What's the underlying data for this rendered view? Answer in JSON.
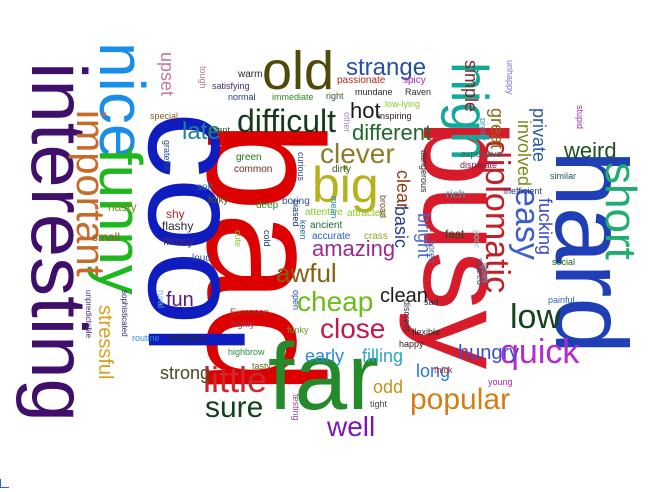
{
  "words": [
    {
      "text": "bad",
      "color": "#dd0000",
      "rot": 90
    },
    {
      "text": "cool",
      "color": "#0f1dc0",
      "rot": 90
    },
    {
      "text": "interesting",
      "color": "#3f0f6b",
      "rot": 90
    },
    {
      "text": "busy",
      "color": "#d81b2a",
      "rot": 90
    },
    {
      "text": "hard",
      "color": "#1e3fb5",
      "rot": 90
    },
    {
      "text": "far",
      "color": "#248a2c",
      "rot": 0
    },
    {
      "text": "nice",
      "color": "#1a8de8",
      "rot": 90
    },
    {
      "text": "funny",
      "color": "#1db81d",
      "rot": 90
    },
    {
      "text": "old",
      "color": "#4f4a0a",
      "rot": 0
    },
    {
      "text": "big",
      "color": "#b7b11d",
      "rot": 0
    },
    {
      "text": "high",
      "color": "#13a897",
      "rot": 90
    },
    {
      "text": "important",
      "color": "#c86a2a",
      "rot": 90
    },
    {
      "text": "short",
      "color": "#1fae6f",
      "rot": 90
    },
    {
      "text": "diplomatic",
      "color": "#c0202a",
      "rot": 90
    },
    {
      "text": "easy",
      "color": "#3e5ecc",
      "rot": 90
    },
    {
      "text": "difficult",
      "color": "#143a1a",
      "rot": 0
    },
    {
      "text": "clever",
      "color": "#8d7d2a",
      "rot": 0
    },
    {
      "text": "little",
      "color": "#d02630",
      "rot": 0
    },
    {
      "text": "quick",
      "color": "#b52ad2",
      "rot": 0
    },
    {
      "text": "popular",
      "color": "#d47c16",
      "rot": 0
    },
    {
      "text": "sure",
      "color": "#12421a",
      "rot": 0
    },
    {
      "text": "well",
      "color": "#7d17b3",
      "rot": 0
    },
    {
      "text": "low",
      "color": "#14441a",
      "rot": 0
    },
    {
      "text": "close",
      "color": "#c01a4a",
      "rot": 0
    },
    {
      "text": "cheap",
      "color": "#6bbd1a",
      "rot": 0
    },
    {
      "text": "awful",
      "color": "#866010",
      "rot": 0
    },
    {
      "text": "late",
      "color": "#1c8496",
      "rot": 0
    },
    {
      "text": "strange",
      "color": "#2550a8",
      "rot": 0
    },
    {
      "text": "different",
      "color": "#1f6a2c",
      "rot": 0
    },
    {
      "text": "hot",
      "color": "#1a1a1a",
      "rot": 0
    },
    {
      "text": "weird",
      "color": "#1f5020",
      "rot": 0
    },
    {
      "text": "clean",
      "color": "#1a1a1a",
      "rot": 0
    },
    {
      "text": "hungry",
      "color": "#3e50c8",
      "rot": 0
    },
    {
      "text": "amazing",
      "color": "#9c2a8f",
      "rot": 0
    },
    {
      "text": "strong",
      "color": "#4a4a1a",
      "rot": 0
    },
    {
      "text": "early",
      "color": "#2a8ad8",
      "rot": 0
    },
    {
      "text": "filling",
      "color": "#2aa8c8",
      "rot": 0
    },
    {
      "text": "long",
      "color": "#2a7ad0",
      "rot": 0
    },
    {
      "text": "odd",
      "color": "#c8901a",
      "rot": 0
    },
    {
      "text": "stressful",
      "color": "#d8a020",
      "rot": 90
    },
    {
      "text": "simple",
      "color": "#7a2a2a",
      "rot": 90
    },
    {
      "text": "great",
      "color": "#8a6a1a",
      "rot": 90
    },
    {
      "text": "involved",
      "color": "#7a8a1a",
      "rot": 90
    },
    {
      "text": "private",
      "color": "#2a5aa0",
      "rot": 90
    },
    {
      "text": "fucking",
      "color": "#3a4ac0",
      "rot": 90
    },
    {
      "text": "clear",
      "color": "#8a3a1a",
      "rot": 90
    },
    {
      "text": "basic",
      "color": "#2a3a8a",
      "rot": 90
    },
    {
      "text": "bright",
      "color": "#4a6ad0",
      "rot": 90
    },
    {
      "text": "fun",
      "color": "#5a1a7a",
      "rot": 0
    },
    {
      "text": "upset",
      "color": "#c07a9a",
      "rot": 90
    },
    {
      "text": "nasty",
      "color": "#7a8a1a",
      "rot": 0
    },
    {
      "text": "small",
      "color": "#8a5a1a",
      "rot": 0
    },
    {
      "text": "shy",
      "color": "#b02a2a",
      "rot": 0
    },
    {
      "text": "flashy",
      "color": "#2a2a2a",
      "rot": 0
    },
    {
      "text": "flimsy",
      "color": "#4a2a6a",
      "rot": 0
    },
    {
      "text": "loud",
      "color": "#2a4a9a",
      "rot": 0
    },
    {
      "text": "green",
      "color": "#1a7a1a",
      "rot": 0
    },
    {
      "text": "common",
      "color": "#6a2a1a",
      "rot": 0
    },
    {
      "text": "soft",
      "color": "#2a6ab0",
      "rot": 0
    },
    {
      "text": "folky",
      "color": "#5a5a1a",
      "rot": 0
    },
    {
      "text": "deep",
      "color": "#2a8a2a",
      "rot": 0
    },
    {
      "text": "boring",
      "color": "#2a4ab0",
      "rot": 0
    },
    {
      "text": "dirty",
      "color": "#2a5a2a",
      "rot": 0
    },
    {
      "text": "attentive",
      "color": "#8ac82a",
      "rot": 0
    },
    {
      "text": "ancient",
      "color": "#1a6a2a",
      "rot": 0
    },
    {
      "text": "attracted",
      "color": "#8ac82a",
      "rot": 0
    },
    {
      "text": "accurate",
      "color": "#2a5ac8",
      "rot": 0
    },
    {
      "text": "crass",
      "color": "#8aa82a",
      "rot": 0
    },
    {
      "text": "fast",
      "color": "#1a4a2a",
      "rot": 0
    },
    {
      "text": "rich",
      "color": "#2aa8a8",
      "rot": 0
    },
    {
      "text": "expensive",
      "color": "#2a6a6a",
      "rot": 0
    },
    {
      "text": "disparate",
      "color": "#7a1a4a",
      "rot": 0
    },
    {
      "text": "inefficient",
      "color": "#2a3a8a",
      "rot": 0
    },
    {
      "text": "similar",
      "color": "#1a5a5a",
      "rot": 0
    },
    {
      "text": "social",
      "color": "#1a5a1a",
      "rot": 0
    },
    {
      "text": "painful",
      "color": "#2a6ab0",
      "rot": 0
    },
    {
      "text": "young",
      "color": "#b02ab0",
      "rot": 0
    },
    {
      "text": "scared",
      "color": "#2a5a8a",
      "rot": 90
    },
    {
      "text": "quiet",
      "color": "#4ab0d0",
      "rot": 90
    },
    {
      "text": "discreet",
      "color": "#2a3a4a",
      "rot": 90
    },
    {
      "text": "sad",
      "color": "#2a2a4a",
      "rot": 0
    },
    {
      "text": "happy",
      "color": "#2a1a1a",
      "rot": 0
    },
    {
      "text": "flexible",
      "color": "#2a2a2a",
      "rot": 0
    },
    {
      "text": "thick",
      "color": "#d02a2a",
      "rot": 0
    },
    {
      "text": "tight",
      "color": "#4a4a4a",
      "rot": 0
    },
    {
      "text": "routine",
      "color": "#2a8ad8",
      "rot": 0
    },
    {
      "text": "intelligent",
      "color": "#2a2a2a",
      "rot": 0
    },
    {
      "text": "European",
      "color": "#b02a1a",
      "rot": 0
    },
    {
      "text": "flighty",
      "color": "#b02a4a",
      "rot": 0
    },
    {
      "text": "highbrow",
      "color": "#2a8a3a",
      "rot": 0
    },
    {
      "text": "tasty",
      "color": "#6a6a1a",
      "rot": 0
    },
    {
      "text": "funky",
      "color": "#6a9a2a",
      "rot": 0
    },
    {
      "text": "open",
      "color": "#2a4ab0",
      "rot": 90
    },
    {
      "text": "cold",
      "color": "#1a3a6a",
      "rot": 90
    },
    {
      "text": "biased",
      "color": "#1a2a6a",
      "rot": 90
    },
    {
      "text": "keen",
      "color": "#2a6ab0",
      "rot": 90
    },
    {
      "text": "cute",
      "color": "#8ac82a",
      "rot": 90
    },
    {
      "text": "rural",
      "color": "#6ab0d0",
      "rot": 90
    },
    {
      "text": "testing",
      "color": "#8a4a8a",
      "rot": 90
    },
    {
      "text": "sophisticated",
      "color": "#2a2a6a",
      "rot": 90
    },
    {
      "text": "unpredictable",
      "color": "#4a2a6a",
      "rot": 90
    },
    {
      "text": "grateful",
      "color": "#2a4a8a",
      "rot": 90
    },
    {
      "text": "tough",
      "color": "#b07a9a",
      "rot": 90
    },
    {
      "text": "warm",
      "color": "#2a2a2a",
      "rot": 0
    },
    {
      "text": "satisfying",
      "color": "#4a2a6a",
      "rot": 0
    },
    {
      "text": "normal",
      "color": "#2a3a8a",
      "rot": 0
    },
    {
      "text": "immediate",
      "color": "#2a8a2a",
      "rot": 0
    },
    {
      "text": "right",
      "color": "#2a5a2a",
      "rot": 0
    },
    {
      "text": "special",
      "color": "#8a5a1a",
      "rot": 0
    },
    {
      "text": "intent",
      "color": "#2a5a2a",
      "rot": 0
    },
    {
      "text": "passionate",
      "color": "#b02a1a",
      "rot": 0
    },
    {
      "text": "spicy",
      "color": "#b02ab0",
      "rot": 0
    },
    {
      "text": "mundane",
      "color": "#2a2a2a",
      "rot": 0
    },
    {
      "text": "Raven",
      "color": "#2a2a2a",
      "rot": 0
    },
    {
      "text": "low-lying",
      "color": "#8ac82a",
      "rot": 0
    },
    {
      "text": "inspiring",
      "color": "#2a1a1a",
      "rot": 0
    },
    {
      "text": "other",
      "color": "#b08ad0",
      "rot": 90
    },
    {
      "text": "pretty",
      "color": "#4a8ab0",
      "rot": 90
    },
    {
      "text": "unhappy",
      "color": "#8a6ad0",
      "rot": 90
    },
    {
      "text": "stupid",
      "color": "#b02ab0",
      "rot": 90
    },
    {
      "text": "dangerous",
      "color": "#2a2a2a",
      "rot": 90
    },
    {
      "text": "curious",
      "color": "#2a4a8a",
      "rot": 90
    },
    {
      "text": "mean",
      "color": "#2a8ad0",
      "rot": 90
    },
    {
      "text": "broad",
      "color": "#6a4a2a",
      "rot": 90
    },
    {
      "text": "bored",
      "color": "#4a6ab0",
      "rot": 90
    },
    {
      "text": "poor",
      "color": "#8ad0d0",
      "rot": 90
    }
  ]
}
